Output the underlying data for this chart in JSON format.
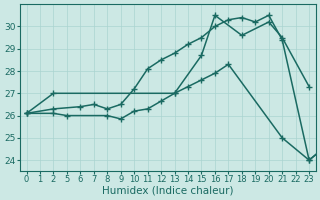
{
  "background_color": "#cce8e4",
  "grid_color": "#aad4d0",
  "line_color": "#1a6a62",
  "xlabel": "Humidex (Indice chaleur)",
  "xlabel_fontsize": 7.5,
  "ylim": [
    23.5,
    31.0
  ],
  "yticks": [
    24,
    25,
    26,
    27,
    28,
    29,
    30
  ],
  "xtick_labels": [
    "0",
    "1",
    "2",
    "5",
    "6",
    "7",
    "8",
    "9",
    "10",
    "11",
    "12",
    "13",
    "14",
    "15",
    "16",
    "17",
    "18",
    "19",
    "20",
    "21",
    "22",
    "23"
  ],
  "line1_xi": [
    0,
    2,
    11,
    13,
    14,
    16,
    18,
    19,
    21
  ],
  "line1_y": [
    26.1,
    27.0,
    27.0,
    28.7,
    30.5,
    29.6,
    30.2,
    29.5,
    27.3
  ],
  "line2_xi": [
    0,
    2,
    4,
    5,
    6,
    7,
    8,
    9,
    10,
    11,
    12,
    13,
    14,
    15,
    16,
    17,
    18,
    19,
    21,
    22
  ],
  "line2_y": [
    26.1,
    26.3,
    26.4,
    26.5,
    26.3,
    26.5,
    27.2,
    28.1,
    28.5,
    28.8,
    29.2,
    29.5,
    30.0,
    30.3,
    30.4,
    30.2,
    30.5,
    29.4,
    24.0,
    24.5
  ],
  "line3_xi": [
    0,
    2,
    3,
    6,
    7,
    8,
    9,
    10,
    11,
    12,
    13,
    14,
    15,
    19,
    21,
    22
  ],
  "line3_y": [
    26.1,
    26.1,
    26.0,
    26.0,
    25.85,
    26.2,
    26.3,
    26.65,
    27.0,
    27.3,
    27.6,
    27.9,
    28.3,
    25.0,
    24.0,
    24.5
  ],
  "markersize": 4,
  "linewidth": 1.1
}
